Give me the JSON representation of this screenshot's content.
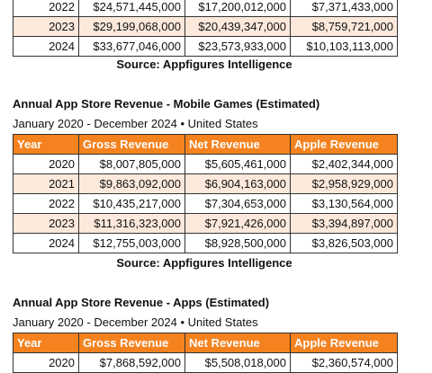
{
  "sections": [
    {
      "rows": [
        [
          "2022",
          "$24,571,445,000",
          "$17,200,012,000",
          "$7,371,433,000"
        ],
        [
          "2023",
          "$29,199,068,000",
          "$20,439,347,000",
          "$8,759,721,000"
        ],
        [
          "2024",
          "$33,677,046,000",
          "$23,573,933,000",
          "$10,103,113,000"
        ]
      ],
      "source": "Source: Appfigures Intelligence"
    },
    {
      "title": "Annual App Store Revenue - Mobile Games (Estimated)",
      "subtitle": "January 2020 - December 2024 • United States",
      "columns": [
        "Year",
        "Gross Revenue",
        "Net Revenue",
        "Apple Revenue"
      ],
      "rows": [
        [
          "2020",
          "$8,007,805,000",
          "$5,605,461,000",
          "$2,402,344,000"
        ],
        [
          "2021",
          "$9,863,092,000",
          "$6,904,163,000",
          "$2,958,929,000"
        ],
        [
          "2022",
          "$10,435,217,000",
          "$7,304,653,000",
          "$3,130,564,000"
        ],
        [
          "2023",
          "$11,316,323,000",
          "$7,921,426,000",
          "$3,394,897,000"
        ],
        [
          "2024",
          "$12,755,003,000",
          "$8,928,500,000",
          "$3,826,503,000"
        ]
      ],
      "source": "Source: Appfigures Intelligence"
    },
    {
      "title": "Annual App Store Revenue - Apps (Estimated)",
      "subtitle": "January 2020 - December 2024 • United States",
      "columns": [
        "Year",
        "Gross Revenue",
        "Net Revenue",
        "Apple Revenue"
      ],
      "rows": [
        [
          "2020",
          "$7,868,592,000",
          "$5,508,018,000",
          "$2,360,574,000"
        ]
      ]
    }
  ]
}
